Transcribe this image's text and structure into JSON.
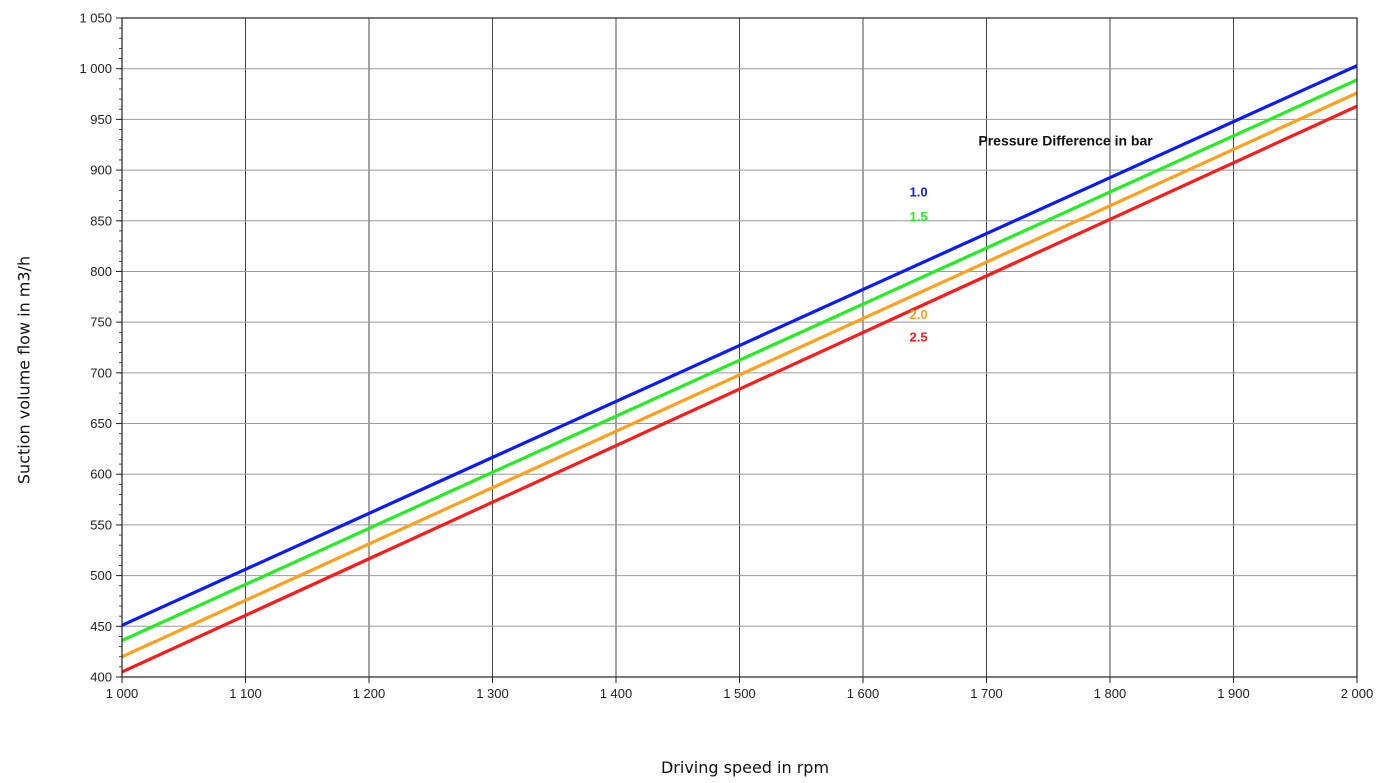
{
  "chart_data": {
    "type": "line",
    "title": "",
    "xlabel": "Driving speed in rpm",
    "ylabel": "Suction volume flow in m3/h",
    "xlim": [
      1000,
      2000
    ],
    "ylim": [
      400,
      1050
    ],
    "x_ticks": [
      "1 000",
      "1 100",
      "1 200",
      "1 300",
      "1 400",
      "1 500",
      "1 600",
      "1 700",
      "1 800",
      "1 900",
      "2 000"
    ],
    "y_ticks": [
      "400",
      "450",
      "500",
      "550",
      "600",
      "650",
      "700",
      "750",
      "800",
      "850",
      "900",
      "950",
      "1 000",
      "1 050"
    ],
    "grid": true,
    "legend": {
      "title": "Pressure Difference in bar",
      "placement": "top-right"
    },
    "series": [
      {
        "name": "1.0",
        "color": "#0a1aff",
        "x": [
          1000,
          2000
        ],
        "y": [
          451,
          1003
        ]
      },
      {
        "name": "1.5",
        "color": "#22ee22",
        "x": [
          1000,
          2000
        ],
        "y": [
          436,
          989
        ]
      },
      {
        "name": "2.0",
        "color": "#ff9f1a",
        "x": [
          1000,
          2000
        ],
        "y": [
          420,
          976
        ]
      },
      {
        "name": "2.5",
        "color": "#ff1a1a",
        "x": [
          1000,
          2000
        ],
        "y": [
          405,
          963
        ]
      }
    ]
  }
}
